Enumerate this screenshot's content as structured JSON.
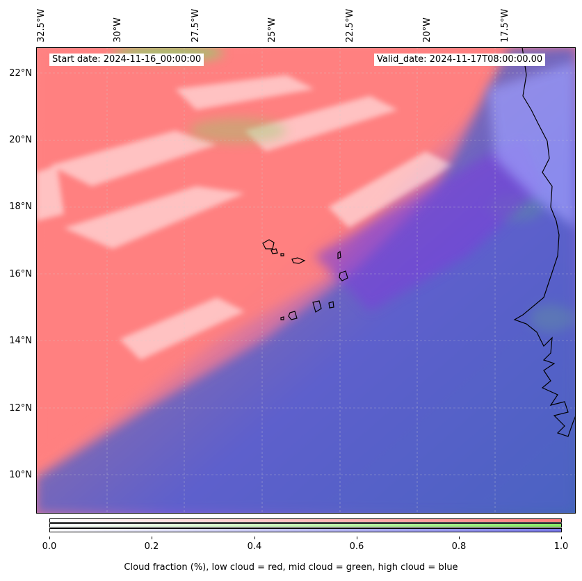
{
  "header": {
    "start_date": "Start date: 2024-11-16_00:00:00",
    "valid_date": "Valid_date: 2024-11-17T08:00:00.00"
  },
  "axes": {
    "lon_labels": [
      "32.5°W",
      "30°W",
      "27.5°W",
      "25°W",
      "22.5°W",
      "20°W",
      "17.5°W"
    ],
    "lat_labels": [
      "22°N",
      "20°N",
      "18°N",
      "16°N",
      "14°N",
      "12°N",
      "10°N"
    ]
  },
  "colorbar": {
    "ticks": [
      "0.0",
      "0.2",
      "0.4",
      "0.6",
      "0.8",
      "1.0"
    ],
    "caption": "Cloud fraction (%), low cloud = red, mid cloud = green, high cloud = blue",
    "colors": {
      "low": "#ff7b7b",
      "mid": "#86e864",
      "high": "#7878e8"
    }
  },
  "map": {
    "colors": {
      "low": "#ff8080",
      "mid": "#8ad46a",
      "high": "#4a5fc8",
      "ocean": "#4a6fb0",
      "coast": "#000000"
    }
  }
}
